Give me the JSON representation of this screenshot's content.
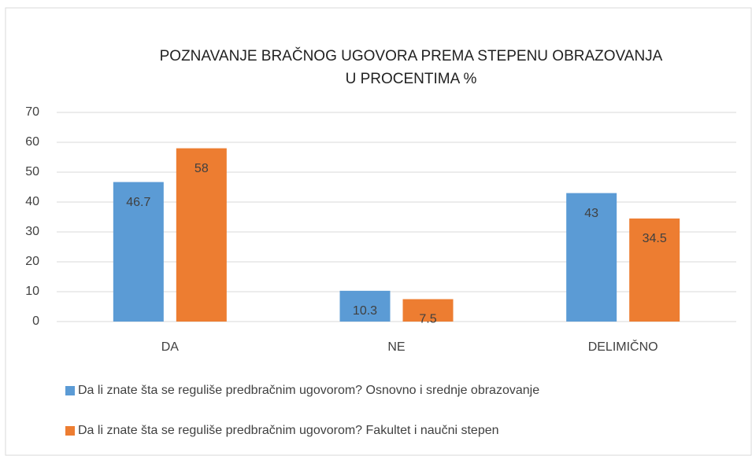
{
  "chart_data": {
    "type": "bar",
    "title": [
      "POZNAVANJE BRAČNOG UGOVORA PREMA STEPENU OBRAZOVANJA",
      "U PROCENTIMA %"
    ],
    "categories": [
      "DA",
      "NE",
      "DELIMIČNO"
    ],
    "series": [
      {
        "name": "Da li znate šta se reguliše predbračnim ugovorom? Osnovno i srednje obrazovanje",
        "color": "#5b9bd5",
        "values": [
          46.7,
          10.3,
          43
        ]
      },
      {
        "name": "Da li znate šta se reguliše predbračnim ugovorom? Fakultet i naučni stepen",
        "color": "#ed7d31",
        "values": [
          58,
          7.5,
          34.5
        ]
      }
    ],
    "ylim": [
      0,
      70
    ],
    "yticks": [
      0,
      10,
      20,
      30,
      40,
      50,
      60,
      70
    ],
    "grid": true,
    "legend": "bottom"
  }
}
